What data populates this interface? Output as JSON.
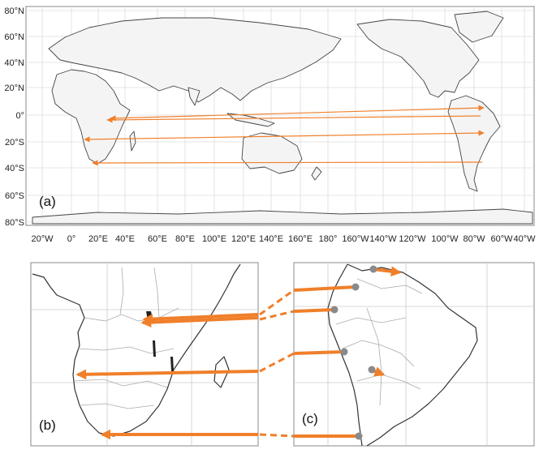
{
  "world_map": {
    "panel_label": "(a)",
    "lat_labels": [
      "80°N",
      "60°N",
      "40°N",
      "20°N",
      "0°",
      "20°S",
      "40°S",
      "60°S",
      "80°S"
    ],
    "lon_labels": [
      "20°W",
      "0°",
      "20°E",
      "40°E",
      "60°E",
      "80°E",
      "100°E",
      "120°E",
      "140°E",
      "160°E",
      "180°",
      "160°W",
      "140°W",
      "120°W",
      "100°W",
      "80°W",
      "60°W",
      "40°W"
    ],
    "colors": {
      "land": "#c8c8c8",
      "coast": "#333333",
      "grid": "#d8d8d8",
      "arrow": "#f07f2a",
      "marker": "#888888"
    }
  },
  "detail_africa": {
    "panel_label": "(b)"
  },
  "detail_south_america": {
    "panel_label": "(c)"
  }
}
